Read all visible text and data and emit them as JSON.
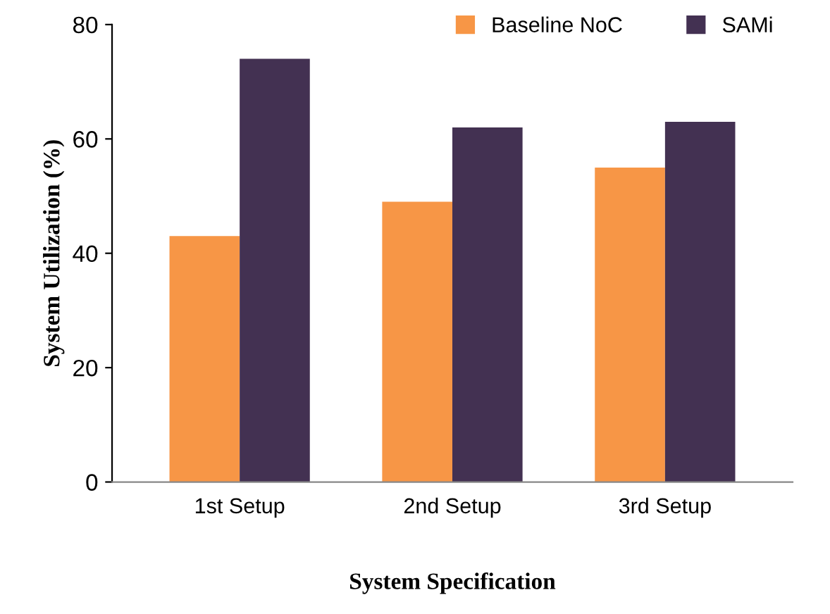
{
  "chart_data": {
    "type": "bar",
    "xlabel": "System Specification",
    "ylabel": "System Utilization (%)",
    "categories": [
      "1st Setup",
      "2nd Setup",
      "3rd Setup"
    ],
    "series": [
      {
        "name": "Baseline NoC",
        "color": "#f79646",
        "values": [
          43,
          49,
          55
        ]
      },
      {
        "name": "SAMi",
        "color": "#433152",
        "values": [
          74,
          62,
          63
        ]
      }
    ],
    "ylim": [
      0,
      80
    ],
    "yticks": [
      0,
      20,
      40,
      60,
      80
    ],
    "grid": false,
    "legend": "top right"
  }
}
